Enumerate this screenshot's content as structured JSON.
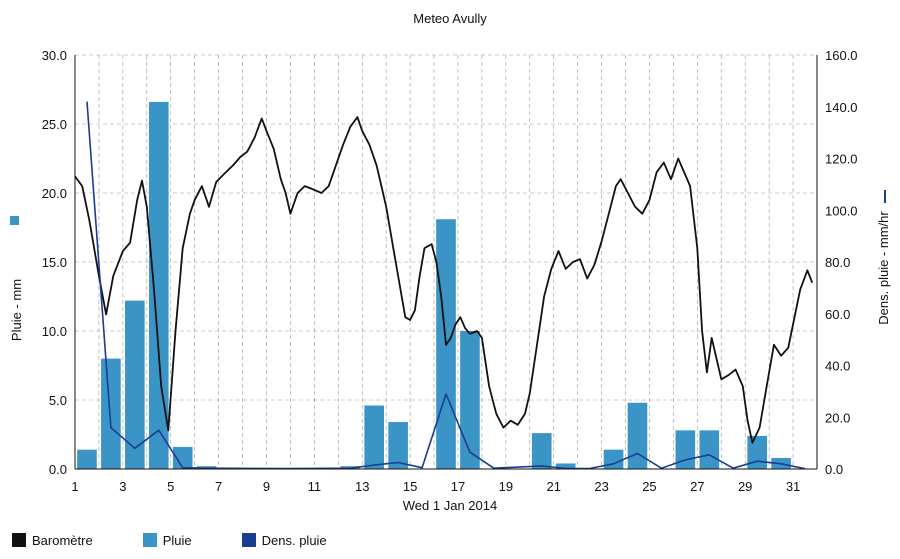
{
  "chart_data": {
    "type": "bar+line",
    "title": "Meteo  Avully",
    "xlabel": "Wed 1 Jan 2014",
    "ylabel_left": "Pluie - mm",
    "ylabel_right": "Dens. pluie - mm/hr",
    "x_ticks": [
      "1",
      "3",
      "5",
      "7",
      "9",
      "11",
      "13",
      "15",
      "17",
      "19",
      "21",
      "23",
      "25",
      "27",
      "29",
      "31"
    ],
    "x_range": [
      1,
      32
    ],
    "y_left_ticks": [
      "0.0",
      "5.0",
      "10.0",
      "15.0",
      "20.0",
      "25.0",
      "30.0"
    ],
    "y_left_range": [
      0,
      30
    ],
    "y_right_ticks": [
      "0.0",
      "20.0",
      "40.0",
      "60.0",
      "80.0",
      "100.0",
      "120.0",
      "140.0",
      "160.0"
    ],
    "y_right_range": [
      0,
      160
    ],
    "grid": true,
    "series": [
      {
        "name": "Baromètre",
        "kind": "line",
        "axis": "left",
        "color": "#111111",
        "points": [
          [
            1,
            21.2
          ],
          [
            1.3,
            20.5
          ],
          [
            1.6,
            18
          ],
          [
            2,
            14
          ],
          [
            2.3,
            11.2
          ],
          [
            2.6,
            14
          ],
          [
            3,
            15.8
          ],
          [
            3.3,
            16.4
          ],
          [
            3.6,
            19.5
          ],
          [
            3.8,
            20.9
          ],
          [
            4,
            19
          ],
          [
            4.3,
            13
          ],
          [
            4.6,
            6
          ],
          [
            4.9,
            2.8
          ],
          [
            5.2,
            10
          ],
          [
            5.5,
            16
          ],
          [
            5.8,
            18.5
          ],
          [
            6,
            19.5
          ],
          [
            6.3,
            20.5
          ],
          [
            6.6,
            19
          ],
          [
            6.9,
            20.8
          ],
          [
            7.3,
            21.5
          ],
          [
            7.6,
            22
          ],
          [
            7.9,
            22.6
          ],
          [
            8.2,
            23
          ],
          [
            8.5,
            24
          ],
          [
            8.8,
            25.4
          ],
          [
            9,
            24.5
          ],
          [
            9.3,
            23.2
          ],
          [
            9.6,
            21
          ],
          [
            9.8,
            20
          ],
          [
            10,
            18.5
          ],
          [
            10.3,
            20
          ],
          [
            10.6,
            20.5
          ],
          [
            10.9,
            20.3
          ],
          [
            11.3,
            20
          ],
          [
            11.6,
            20.5
          ],
          [
            11.9,
            22
          ],
          [
            12.2,
            23.5
          ],
          [
            12.5,
            24.8
          ],
          [
            12.8,
            25.5
          ],
          [
            13,
            24.5
          ],
          [
            13.3,
            23.5
          ],
          [
            13.6,
            22
          ],
          [
            14,
            19
          ],
          [
            14.3,
            16
          ],
          [
            14.6,
            13
          ],
          [
            14.8,
            11
          ],
          [
            15,
            10.8
          ],
          [
            15.2,
            11.5
          ],
          [
            15.4,
            14
          ],
          [
            15.6,
            16
          ],
          [
            15.9,
            16.3
          ],
          [
            16.1,
            15
          ],
          [
            16.3,
            12.5
          ],
          [
            16.5,
            9
          ],
          [
            16.7,
            9.5
          ],
          [
            16.9,
            10.5
          ],
          [
            17.1,
            11
          ],
          [
            17.3,
            10.2
          ],
          [
            17.5,
            9.8
          ],
          [
            17.8,
            10
          ],
          [
            18,
            9.5
          ],
          [
            18.3,
            6
          ],
          [
            18.6,
            4
          ],
          [
            18.9,
            3
          ],
          [
            19.2,
            3.5
          ],
          [
            19.5,
            3.2
          ],
          [
            19.8,
            4
          ],
          [
            20,
            5.5
          ],
          [
            20.3,
            9
          ],
          [
            20.6,
            12.5
          ],
          [
            20.9,
            14.5
          ],
          [
            21.2,
            15.8
          ],
          [
            21.5,
            14.5
          ],
          [
            21.8,
            15
          ],
          [
            22.1,
            15.2
          ],
          [
            22.4,
            13.8
          ],
          [
            22.7,
            14.8
          ],
          [
            23,
            16.5
          ],
          [
            23.3,
            18.5
          ],
          [
            23.6,
            20.5
          ],
          [
            23.8,
            21
          ],
          [
            24.1,
            20
          ],
          [
            24.4,
            19
          ],
          [
            24.7,
            18.5
          ],
          [
            25,
            19.5
          ],
          [
            25.3,
            21.5
          ],
          [
            25.6,
            22.2
          ],
          [
            25.9,
            21
          ],
          [
            26.2,
            22.5
          ],
          [
            26.5,
            21.3
          ],
          [
            26.7,
            20.5
          ],
          [
            27,
            16
          ],
          [
            27.2,
            10
          ],
          [
            27.4,
            7
          ],
          [
            27.6,
            9.5
          ],
          [
            27.8,
            8
          ],
          [
            28,
            6.5
          ],
          [
            28.3,
            6.8
          ],
          [
            28.6,
            7.2
          ],
          [
            28.9,
            6
          ],
          [
            29.1,
            3.5
          ],
          [
            29.3,
            1.9
          ],
          [
            29.6,
            3
          ],
          [
            29.9,
            6
          ],
          [
            30.2,
            9
          ],
          [
            30.5,
            8.2
          ],
          [
            30.8,
            8.8
          ],
          [
            31,
            10.5
          ],
          [
            31.3,
            13
          ],
          [
            31.6,
            14.4
          ],
          [
            31.8,
            13.5
          ]
        ]
      },
      {
        "name": "Pluie",
        "kind": "bar",
        "axis": "left",
        "color": "#3a95c6",
        "points": [
          [
            1.5,
            1.4
          ],
          [
            2.5,
            8.0
          ],
          [
            3.5,
            12.2
          ],
          [
            4.5,
            26.6
          ],
          [
            5.5,
            1.6
          ],
          [
            6.5,
            0.2
          ],
          [
            12.5,
            0.2
          ],
          [
            13.5,
            4.6
          ],
          [
            14.5,
            3.4
          ],
          [
            16.5,
            18.1
          ],
          [
            17.5,
            10.0
          ],
          [
            20.5,
            2.6
          ],
          [
            21.5,
            0.4
          ],
          [
            23.5,
            1.4
          ],
          [
            24.5,
            4.8
          ],
          [
            26.5,
            2.8
          ],
          [
            27.5,
            2.8
          ],
          [
            29.5,
            2.4
          ],
          [
            30.5,
            0.8
          ]
        ]
      },
      {
        "name": "Dens. pluie",
        "kind": "line",
        "axis": "right",
        "color": "#1a3d8f",
        "points": [
          [
            1.5,
            142
          ],
          [
            2.5,
            16
          ],
          [
            3.5,
            8
          ],
          [
            4.5,
            15
          ],
          [
            5.5,
            0.5
          ],
          [
            6.5,
            0.3
          ],
          [
            10,
            0.2
          ],
          [
            12.5,
            0.3
          ],
          [
            13.5,
            1.5
          ],
          [
            14.5,
            2.5
          ],
          [
            15.5,
            0.5
          ],
          [
            16.5,
            29
          ],
          [
            17.5,
            6.5
          ],
          [
            18.5,
            0.3
          ],
          [
            20.5,
            1.2
          ],
          [
            21.5,
            0.2
          ],
          [
            22.5,
            0.2
          ],
          [
            23.5,
            2
          ],
          [
            24.5,
            6
          ],
          [
            25.5,
            0.3
          ],
          [
            26.5,
            3.5
          ],
          [
            27.5,
            5.5
          ],
          [
            28.5,
            0.3
          ],
          [
            29.5,
            3
          ],
          [
            30.5,
            2
          ],
          [
            31.5,
            0.1
          ]
        ]
      }
    ],
    "legend_position": "bottom-left",
    "legend_marker_left_color": "#3a95c6",
    "legend_marker_right_color": "#1a3d8f"
  }
}
